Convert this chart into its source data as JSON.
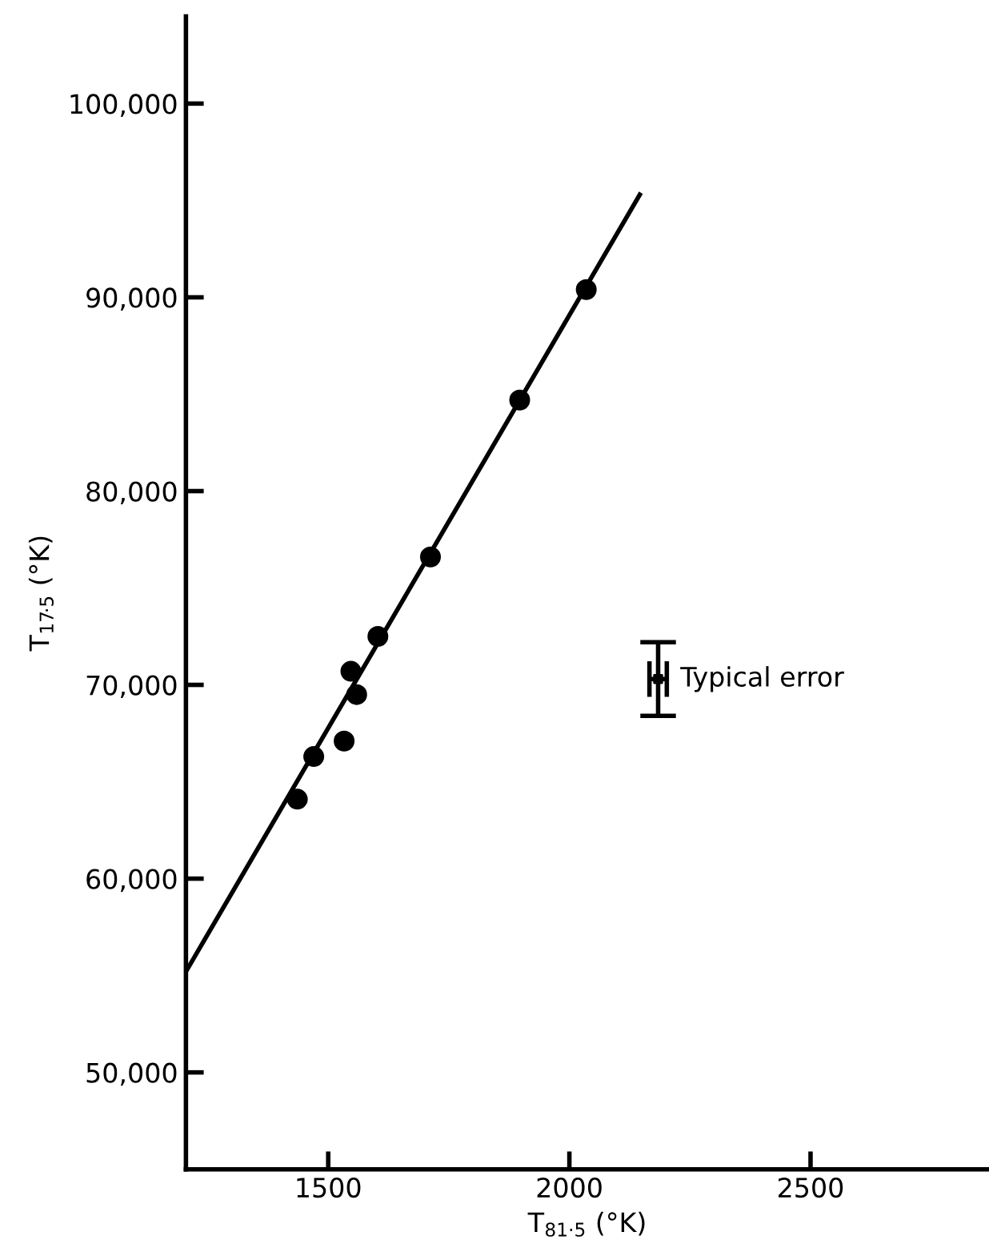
{
  "chart_data": {
    "type": "scatter",
    "xlabel": "T$_{81·5}$ (°K)",
    "ylabel": "T$_{17·5}$ (°K)",
    "xlim": [
      1205,
      2870
    ],
    "ylim": [
      45000,
      104500
    ],
    "xticks": [
      1500,
      2000,
      2500
    ],
    "yticks": [
      {
        "value": 50000,
        "label": "50,000"
      },
      {
        "value": 60000,
        "label": "60,000"
      },
      {
        "value": 70000,
        "label": "70,000"
      },
      {
        "value": 80000,
        "label": "80,000"
      },
      {
        "value": 90000,
        "label": "90,000"
      },
      {
        "value": 100000,
        "label": "100,000"
      }
    ],
    "grid": false,
    "legend": false,
    "marker": "circle",
    "series": [
      {
        "color": "#000000",
        "x": [
          1436,
          1470,
          1533,
          1547,
          1559,
          1603,
          1712,
          1897,
          2035
        ],
        "values": [
          64100,
          66300,
          67100,
          70700,
          69500,
          72500,
          76600,
          84700,
          90400
        ]
      },
      {
        "type": "line",
        "color": "#000000",
        "marker": "none",
        "line_style": "solid",
        "x": [
          1205,
          2146
        ],
        "values": [
          55200,
          95300
        ]
      },
      {
        "type": "scatter",
        "color": "#000000",
        "marker": "square",
        "x": [
          2184
        ],
        "values": [
          70300
        ],
        "errors": [
          1900
        ],
        "xerrors": [
          18
        ]
      }
    ],
    "annotations": [
      {
        "text": "Typical error",
        "x": 2184,
        "y": 70300
      }
    ]
  }
}
